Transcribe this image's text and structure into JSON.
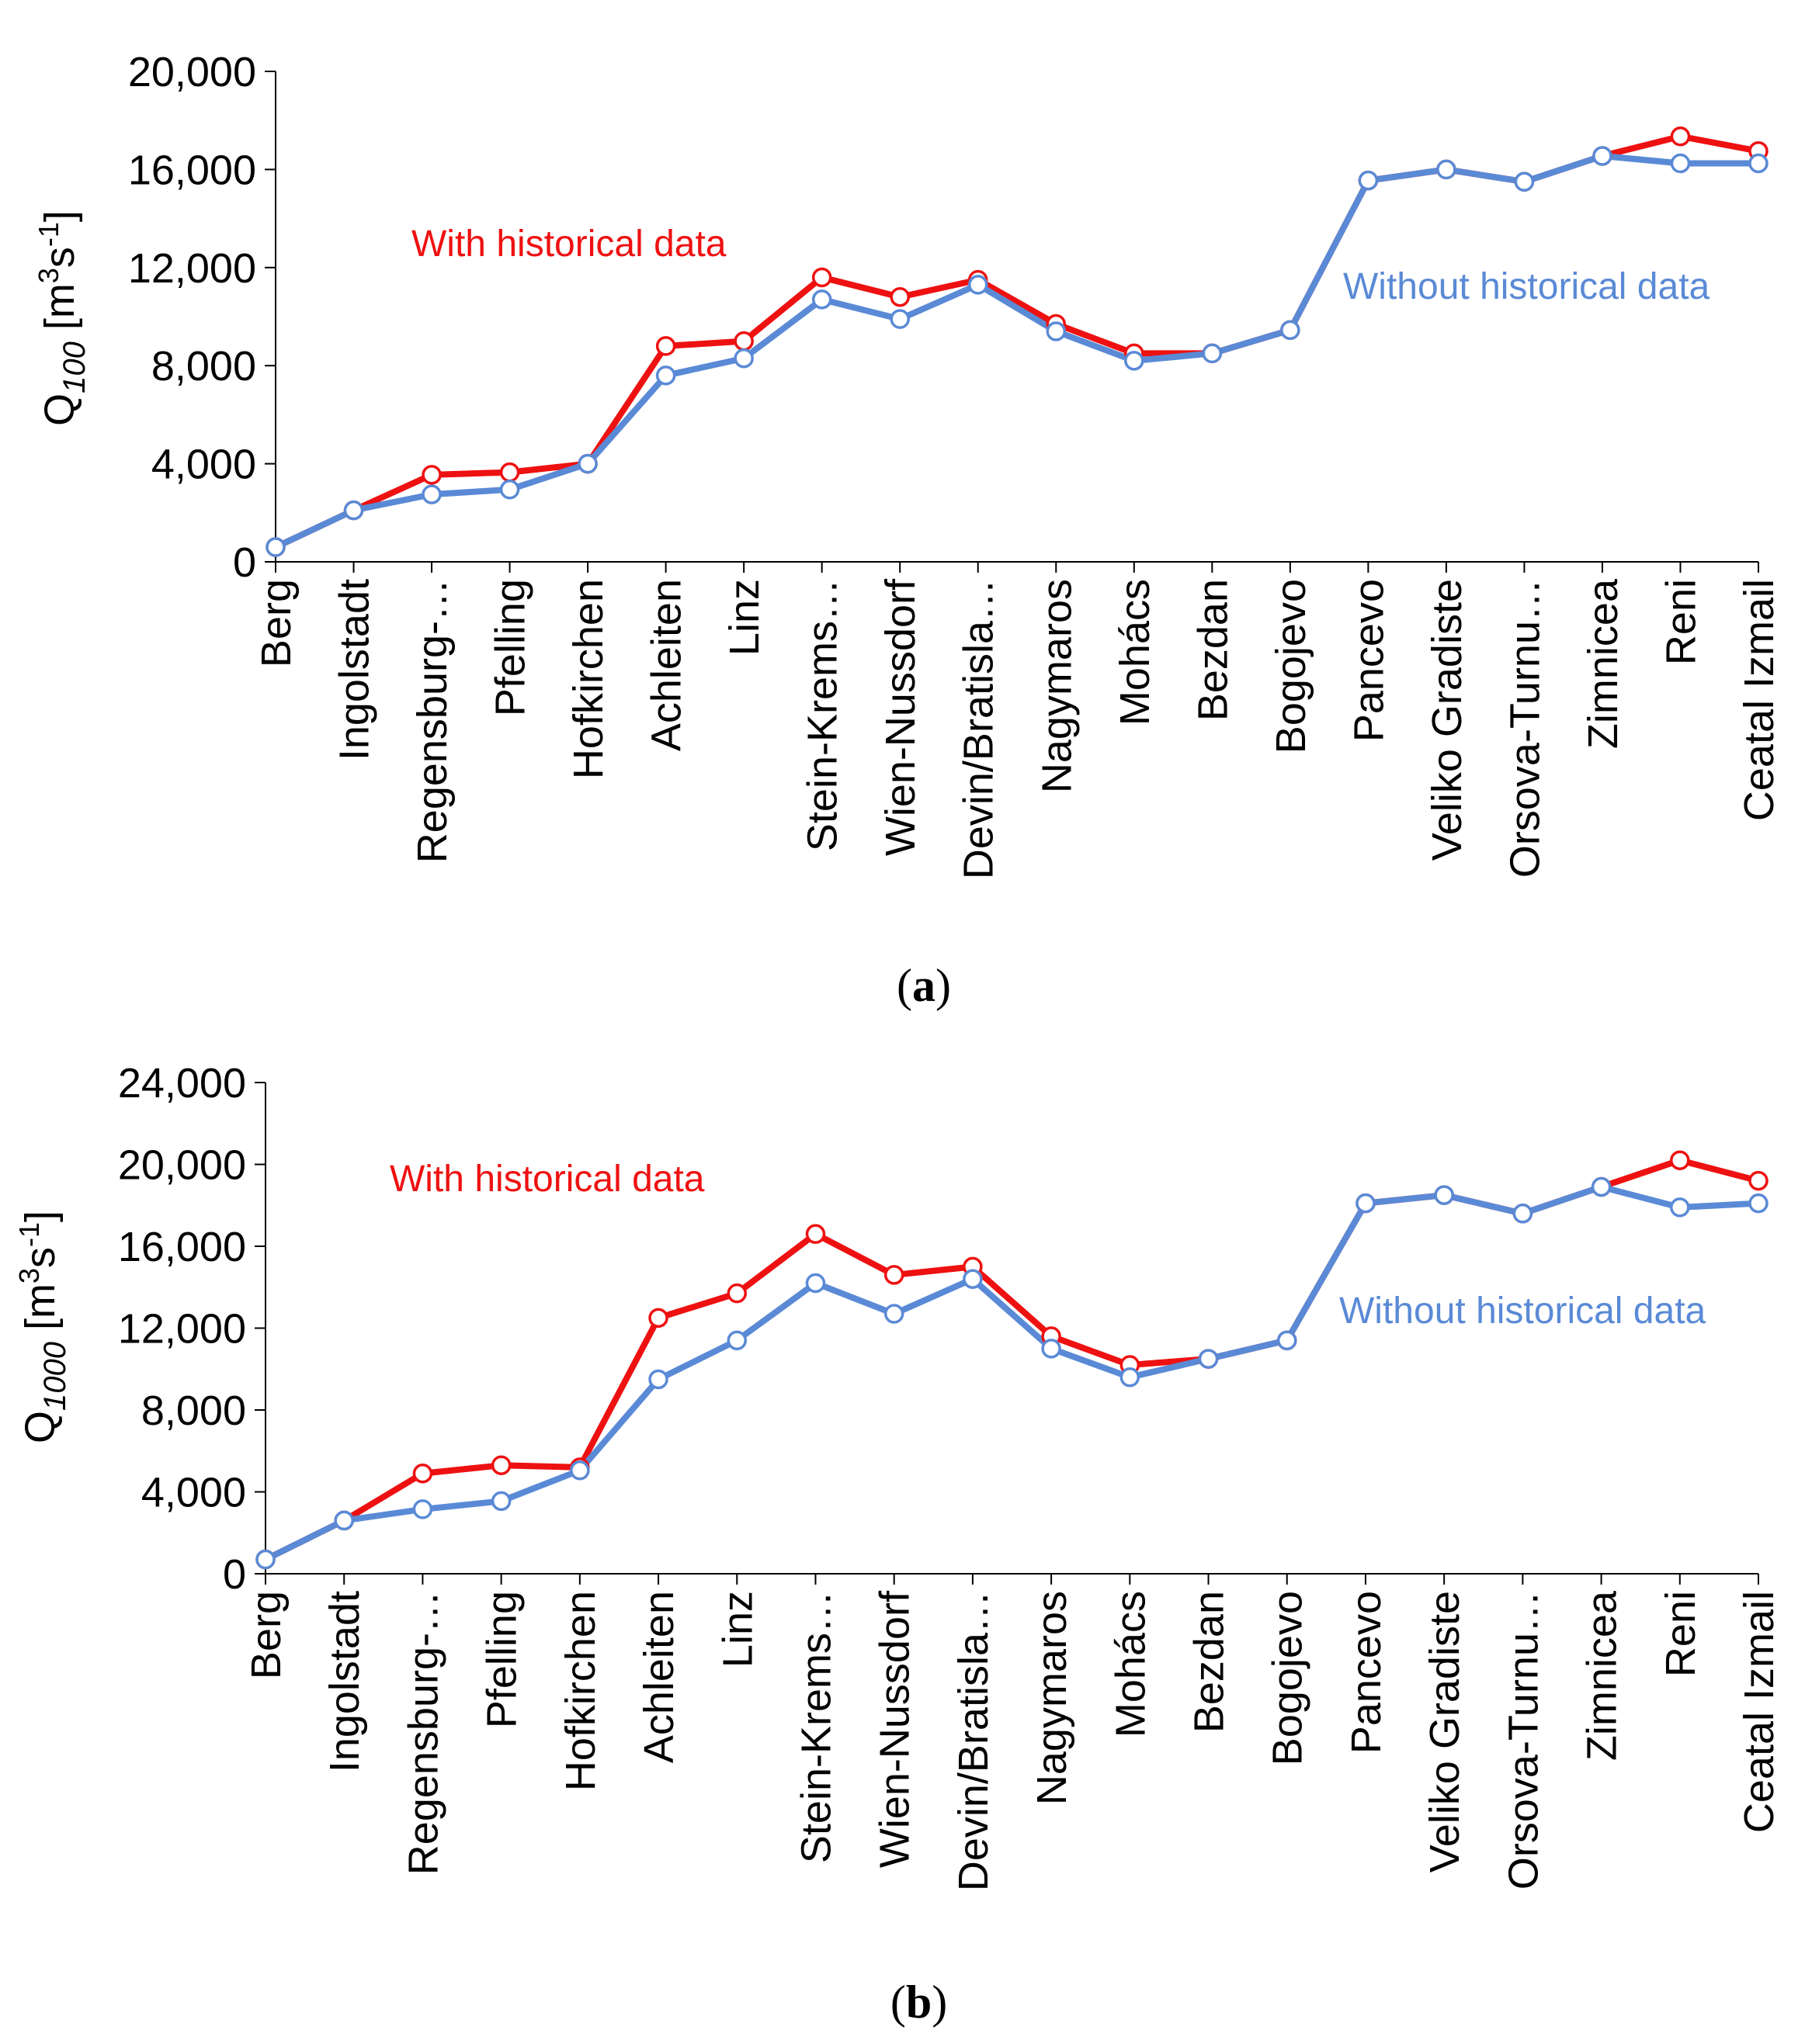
{
  "colors": {
    "with": "#ee1111",
    "without": "#5a8ad6",
    "axis": "#000000"
  },
  "chart_data": [
    {
      "panel": "a",
      "panel_label": "(a)",
      "type": "line",
      "ylabel": {
        "main": "Q",
        "sub": "100",
        "unit_open": " [m",
        "sup1": "3",
        "unit_mid": "s",
        "sup2": "-1",
        "unit_close": "]"
      },
      "ylim": [
        0,
        20000
      ],
      "yticks": [
        0,
        4000,
        8000,
        12000,
        16000,
        20000
      ],
      "ytick_labels": [
        "0",
        "4,000",
        "8,000",
        "12,000",
        "16,000",
        "20,000"
      ],
      "categories": [
        "Berg",
        "Ingolstadt",
        "Regensburg-…",
        "Pfelling",
        "Hofkirchen",
        "Achleiten",
        "Linz",
        "Stein-Krems…",
        "Wien-Nussdorf",
        "Devin/Bratisla…",
        "Nagymaros",
        "Mohács",
        "Bezdan",
        "Bogojevo",
        "Pancevo",
        "Veliko Gradiste",
        "Orsova-Turnu…",
        "Zimnicea",
        "Reni",
        "Ceatal Izmail"
      ],
      "series": [
        {
          "name": "With historical data",
          "values": [
            600,
            2100,
            3550,
            3650,
            4000,
            8800,
            9000,
            11600,
            10800,
            11500,
            9700,
            8500,
            8500,
            9450,
            15550,
            16000,
            15500,
            16550,
            17350,
            16750
          ]
        },
        {
          "name": "Without historical data",
          "values": [
            600,
            2100,
            2750,
            2950,
            4000,
            7600,
            8300,
            10700,
            9900,
            11300,
            9400,
            8200,
            8500,
            9450,
            15550,
            16000,
            15500,
            16550,
            16250,
            16250
          ]
        }
      ]
    },
    {
      "panel": "b",
      "panel_label": "(b)",
      "type": "line",
      "ylabel": {
        "main": "Q",
        "sub": "1000",
        "unit_open": " [m",
        "sup1": "3",
        "unit_mid": "s",
        "sup2": "-1",
        "unit_close": "]"
      },
      "ylim": [
        0,
        24000
      ],
      "yticks": [
        0,
        4000,
        8000,
        12000,
        16000,
        20000,
        24000
      ],
      "ytick_labels": [
        "0",
        "4,000",
        "8,000",
        "12,000",
        "16,000",
        "20,000",
        "24,000"
      ],
      "categories": [
        "Berg",
        "Ingolstadt",
        "Regensburg-…",
        "Pfelling",
        "Hofkirchen",
        "Achleiten",
        "Linz",
        "Stein-Krems…",
        "Wien-Nussdorf",
        "Devin/Bratisla…",
        "Nagymaros",
        "Mohács",
        "Bezdan",
        "Bogojevo",
        "Pancevo",
        "Veliko Gradiste",
        "Orsova-Turnu…",
        "Zimnicea",
        "Reni",
        "Ceatal Izmail"
      ],
      "series": [
        {
          "name": "With historical data",
          "values": [
            700,
            2600,
            4900,
            5300,
            5200,
            12500,
            13700,
            16600,
            14600,
            15000,
            11600,
            10200,
            10500,
            11400,
            18100,
            18500,
            17600,
            18900,
            20200,
            19200
          ]
        },
        {
          "name": "Without historical data",
          "values": [
            700,
            2600,
            3150,
            3550,
            5050,
            9500,
            11400,
            14200,
            12700,
            14400,
            11000,
            9600,
            10500,
            11400,
            18100,
            18500,
            17600,
            18900,
            17900,
            18100
          ]
        }
      ]
    }
  ]
}
